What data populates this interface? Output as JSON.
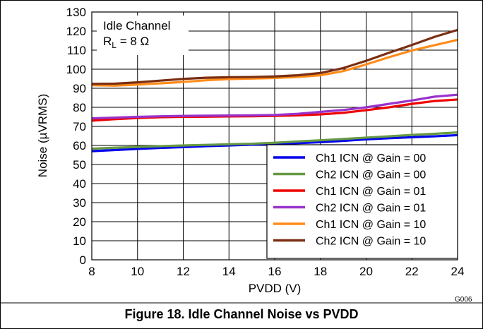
{
  "chart_data": {
    "type": "line",
    "title": "",
    "xlabel": "PVDD (V)",
    "ylabel": "Noise (µVRMS)",
    "xlim": [
      8,
      24
    ],
    "ylim": [
      0,
      130
    ],
    "xticks": [
      8,
      10,
      12,
      14,
      16,
      18,
      20,
      22,
      24
    ],
    "yticks": [
      0,
      10,
      20,
      30,
      40,
      50,
      60,
      70,
      80,
      90,
      100,
      110,
      120,
      130
    ],
    "grid": true,
    "legend_position": "bottom-right",
    "annotation": {
      "line1": "Idle Channel",
      "line2_prefix": "R",
      "line2_sub": "L",
      "line2_suffix": " = 8 Ω"
    },
    "series": [
      {
        "name": "Ch1 ICN @ Gain = 00",
        "color": "#0000ee",
        "x": [
          8,
          9,
          10,
          11,
          12,
          13,
          14,
          15,
          16,
          17,
          18,
          19,
          20,
          21,
          22,
          23,
          24
        ],
        "y": [
          57,
          57.6,
          58.2,
          58.7,
          59.1,
          59.6,
          60.0,
          60.4,
          60.8,
          61.2,
          61.7,
          62.4,
          63.2,
          63.8,
          64.3,
          64.8,
          65.4
        ]
      },
      {
        "name": "Ch2 ICN @ Gain = 00",
        "color": "#669944",
        "x": [
          8,
          9,
          10,
          11,
          12,
          13,
          14,
          15,
          16,
          17,
          18,
          19,
          20,
          21,
          22,
          23,
          24
        ],
        "y": [
          58.3,
          58.8,
          59.2,
          59.6,
          60.0,
          60.3,
          60.6,
          60.9,
          61.4,
          62.1,
          62.7,
          63.4,
          64.1,
          64.8,
          65.5,
          66.1,
          66.8
        ]
      },
      {
        "name": "Ch1 ICN @ Gain = 01",
        "color": "#ee0000",
        "x": [
          8,
          9,
          10,
          11,
          12,
          13,
          14,
          15,
          16,
          17,
          18,
          19,
          20,
          21,
          22,
          23,
          24
        ],
        "y": [
          73,
          73.8,
          74.4,
          74.8,
          75.0,
          75.1,
          75.2,
          75.3,
          75.5,
          75.8,
          76.3,
          77.1,
          78.5,
          80.0,
          81.8,
          83.3,
          84.1
        ]
      },
      {
        "name": "Ch2 ICN @ Gain = 01",
        "color": "#9933cc",
        "x": [
          8,
          9,
          10,
          11,
          12,
          13,
          14,
          15,
          16,
          17,
          18,
          19,
          20,
          21,
          22,
          23,
          24
        ],
        "y": [
          74.2,
          74.6,
          75.0,
          75.3,
          75.5,
          75.6,
          75.7,
          75.8,
          76.0,
          76.6,
          77.6,
          78.6,
          80.0,
          81.8,
          83.6,
          85.6,
          86.6
        ]
      },
      {
        "name": "Ch1 ICN @ Gain = 10",
        "color": "#ff8c1a",
        "x": [
          8,
          9,
          10,
          11,
          12,
          13,
          14,
          15,
          16,
          17,
          18,
          19,
          20,
          21,
          22,
          23,
          24
        ],
        "y": [
          91.6,
          91.4,
          91.9,
          92.6,
          93.3,
          94.2,
          94.8,
          95.1,
          95.4,
          95.9,
          96.8,
          99.0,
          102.5,
          106.3,
          109.8,
          112.6,
          115.4
        ]
      },
      {
        "name": "Ch2 ICN @ Gain = 10",
        "color": "#7a2e12",
        "x": [
          8,
          9,
          10,
          11,
          12,
          13,
          14,
          15,
          16,
          17,
          18,
          19,
          20,
          21,
          22,
          23,
          24
        ],
        "y": [
          92.3,
          92.4,
          93.1,
          94.0,
          94.9,
          95.5,
          95.8,
          95.9,
          96.2,
          96.8,
          98.0,
          100.6,
          104.4,
          108.6,
          112.7,
          117.0,
          120.6
        ]
      }
    ]
  },
  "figure": {
    "code": "G006",
    "caption": "Figure 18. Idle Channel Noise vs PVDD"
  }
}
